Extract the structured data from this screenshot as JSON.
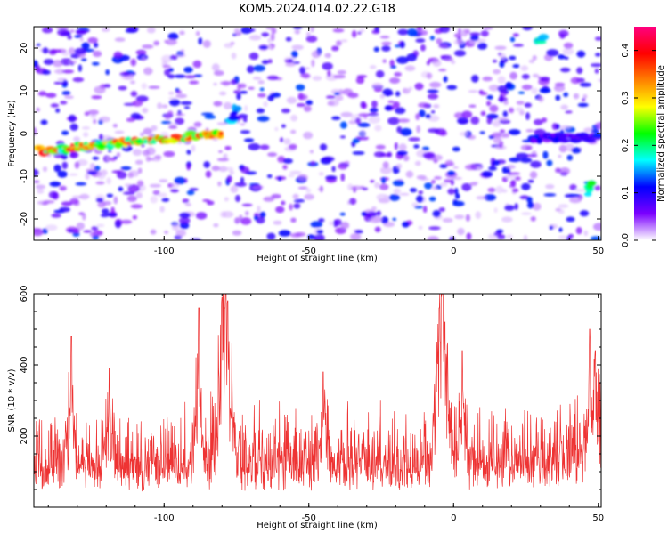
{
  "title": "KOM5.2024.014.02.22.G18",
  "chart_data": [
    {
      "type": "heatmap",
      "xlabel": "Height of straight line (km)",
      "ylabel": "Frequency (Hz)",
      "xlim": [
        -145,
        51
      ],
      "ylim": [
        -25,
        25
      ],
      "x_ticks": [
        -100,
        -50,
        0,
        50
      ],
      "y_ticks": [
        -20,
        -10,
        0,
        10,
        20
      ],
      "colorbar": {
        "label": "Normalized spectral amplitude",
        "range": [
          0.0,
          0.45
        ],
        "ticks": [
          0.0,
          0.1,
          0.2,
          0.3,
          0.4
        ],
        "colors": [
          "#ffffff",
          "#7b00ff",
          "#0000ff",
          "#00ffff",
          "#00ff00",
          "#ffff00",
          "#ff8000",
          "#ff0000",
          "#ff0080"
        ]
      },
      "features": [
        {
          "x": [
            -143,
            -80
          ],
          "y": [
            -4,
            0
          ],
          "amplitude": 0.4
        },
        {
          "x": [
            -77,
            -75
          ],
          "y": [
            3,
            6
          ],
          "amplitude": 0.2
        },
        {
          "x": [
            29,
            31
          ],
          "y": [
            21,
            23
          ],
          "amplitude": 0.2
        },
        {
          "x": [
            46,
            48
          ],
          "y": [
            -14,
            -11
          ],
          "amplitude": 0.25
        },
        {
          "x": [
            27,
            50
          ],
          "y": [
            -1,
            -1
          ],
          "amplitude": 0.12
        }
      ]
    },
    {
      "type": "line",
      "xlabel": "Height of straight line (km)",
      "ylabel": "SNR (10 * v/v)",
      "xlim": [
        -145,
        51
      ],
      "ylim": [
        0,
        600
      ],
      "x_ticks": [
        -100,
        -50,
        0,
        50
      ],
      "y_ticks": [
        200,
        400,
        600
      ],
      "color": "#ee3333",
      "baseline": 120,
      "peaks": [
        {
          "x": -132,
          "y": 480
        },
        {
          "x": -119,
          "y": 390
        },
        {
          "x": -88,
          "y": 560
        },
        {
          "x": -80,
          "y": 590
        },
        {
          "x": -79,
          "y": 560
        },
        {
          "x": -78,
          "y": 580
        },
        {
          "x": -45,
          "y": 380
        },
        {
          "x": -4,
          "y": 600
        },
        {
          "x": -5,
          "y": 560
        },
        {
          "x": -3,
          "y": 520
        },
        {
          "x": 3,
          "y": 440
        },
        {
          "x": 47,
          "y": 500
        },
        {
          "x": 49,
          "y": 440
        }
      ]
    }
  ]
}
